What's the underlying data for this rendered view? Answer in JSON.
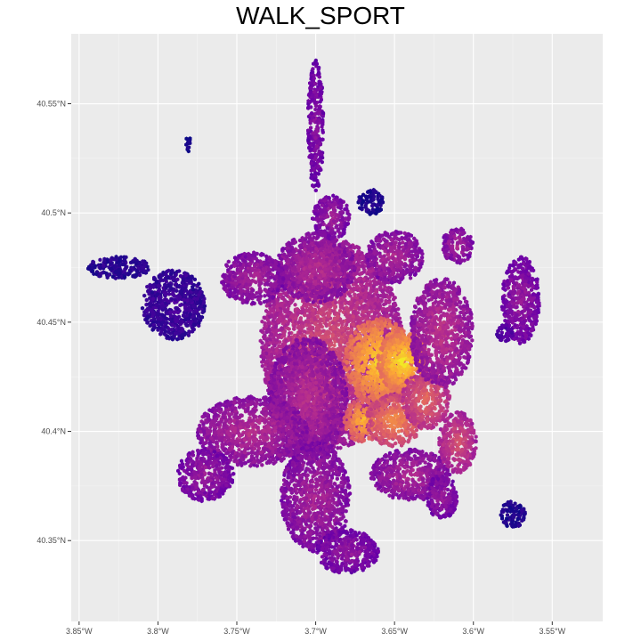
{
  "title": "WALK_SPORT",
  "colors": {
    "panel_background": "#ebebeb",
    "grid_major": "#ffffff",
    "grid_minor": "#f5f5f5",
    "palette": [
      "#0d0887",
      "#6a00a8",
      "#b12a90",
      "#e16462",
      "#fca636",
      "#f0f921"
    ]
  },
  "chart_data": {
    "type": "heatmap",
    "color_scale": "plasma",
    "legend": "none",
    "grid": true,
    "x_axis": {
      "range": [
        -3.855,
        -3.518
      ],
      "ticks": [
        -3.85,
        -3.8,
        -3.75,
        -3.7,
        -3.65,
        -3.6,
        -3.55
      ],
      "tick_labels": [
        "3.85°W",
        "3.8°W",
        "3.75°W",
        "3.7°W",
        "3.65°W",
        "3.6°W",
        "3.55°W"
      ]
    },
    "y_axis": {
      "range": [
        40.313,
        40.582
      ],
      "ticks": [
        40.35,
        40.4,
        40.45,
        40.5,
        40.55
      ],
      "tick_labels": [
        "40.35°N",
        "40.4°N",
        "40.45°N",
        "40.5°N",
        "40.55°N"
      ]
    },
    "region_clusters": [
      {
        "lon": -3.69,
        "lat": 40.44,
        "rlon": 0.045,
        "rlat": 0.048,
        "value": 0.52
      },
      {
        "lon": -3.705,
        "lat": 40.415,
        "rlon": 0.025,
        "rlat": 0.028,
        "value": 0.42
      },
      {
        "lon": -3.66,
        "lat": 40.432,
        "rlon": 0.022,
        "rlat": 0.02,
        "value": 0.92
      },
      {
        "lon": -3.645,
        "lat": 40.432,
        "rlon": 0.016,
        "rlat": 0.014,
        "value": 0.97
      },
      {
        "lon": -3.67,
        "lat": 40.405,
        "rlon": 0.012,
        "rlat": 0.01,
        "value": 0.85
      },
      {
        "lon": -3.65,
        "lat": 40.405,
        "rlon": 0.018,
        "rlat": 0.012,
        "value": 0.74
      },
      {
        "lon": -3.63,
        "lat": 40.415,
        "rlon": 0.015,
        "rlat": 0.014,
        "value": 0.63
      },
      {
        "lon": -3.62,
        "lat": 40.445,
        "rlon": 0.02,
        "rlat": 0.025,
        "value": 0.45
      },
      {
        "lon": -3.7,
        "lat": 40.475,
        "rlon": 0.025,
        "rlat": 0.016,
        "value": 0.42
      },
      {
        "lon": -3.74,
        "lat": 40.47,
        "rlon": 0.02,
        "rlat": 0.012,
        "value": 0.38
      },
      {
        "lon": -3.69,
        "lat": 40.498,
        "rlon": 0.012,
        "rlat": 0.01,
        "value": 0.35
      },
      {
        "lon": -3.65,
        "lat": 40.48,
        "rlon": 0.018,
        "rlat": 0.012,
        "value": 0.4
      },
      {
        "lon": -3.61,
        "lat": 40.485,
        "rlon": 0.01,
        "rlat": 0.008,
        "value": 0.38
      },
      {
        "lon": -3.57,
        "lat": 40.46,
        "rlon": 0.012,
        "rlat": 0.02,
        "value": 0.33
      },
      {
        "lon": -3.79,
        "lat": 40.458,
        "rlon": 0.02,
        "rlat": 0.016,
        "value": 0.12
      },
      {
        "lon": -3.825,
        "lat": 40.475,
        "rlon": 0.02,
        "rlat": 0.005,
        "value": 0.08
      },
      {
        "lon": -3.74,
        "lat": 40.4,
        "rlon": 0.035,
        "rlat": 0.016,
        "value": 0.42
      },
      {
        "lon": -3.77,
        "lat": 40.38,
        "rlon": 0.018,
        "rlat": 0.012,
        "value": 0.34
      },
      {
        "lon": -3.7,
        "lat": 40.37,
        "rlon": 0.022,
        "rlat": 0.025,
        "value": 0.38
      },
      {
        "lon": -3.68,
        "lat": 40.345,
        "rlon": 0.02,
        "rlat": 0.01,
        "value": 0.32
      },
      {
        "lon": -3.64,
        "lat": 40.38,
        "rlon": 0.025,
        "rlat": 0.012,
        "value": 0.4
      },
      {
        "lon": -3.61,
        "lat": 40.395,
        "rlon": 0.012,
        "rlat": 0.014,
        "value": 0.55
      },
      {
        "lon": -3.62,
        "lat": 40.37,
        "rlon": 0.01,
        "rlat": 0.01,
        "value": 0.34
      },
      {
        "lon": -3.575,
        "lat": 40.362,
        "rlon": 0.008,
        "rlat": 0.006,
        "value": 0.05
      },
      {
        "lon": -3.781,
        "lat": 40.532,
        "rlon": 0.002,
        "rlat": 0.004,
        "value": 0.03
      },
      {
        "lon": -3.665,
        "lat": 40.505,
        "rlon": 0.008,
        "rlat": 0.006,
        "value": 0.05
      },
      {
        "lon": -3.7,
        "lat": 40.54,
        "rlon": 0.005,
        "rlat": 0.03,
        "value": 0.3
      },
      {
        "lon": -3.58,
        "lat": 40.445,
        "rlon": 0.006,
        "rlat": 0.004,
        "value": 0.2
      }
    ]
  }
}
